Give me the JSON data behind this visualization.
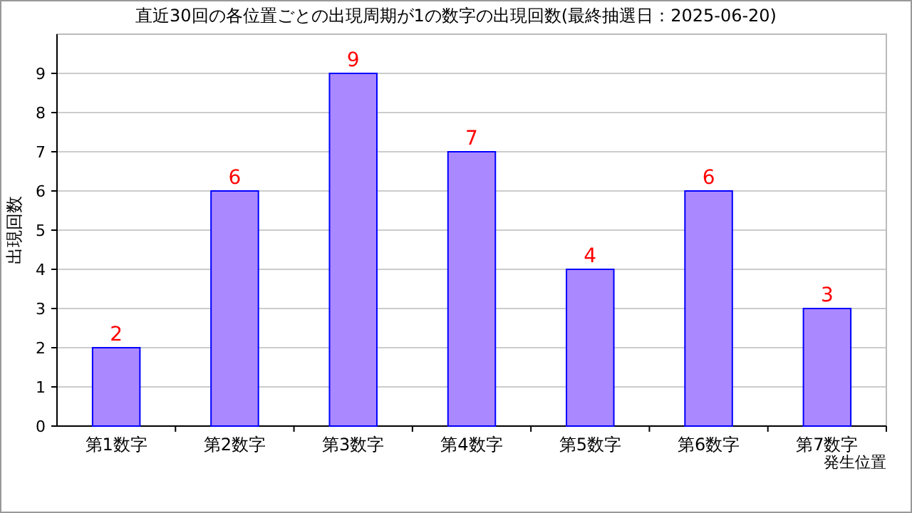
{
  "chart_data": {
    "type": "bar",
    "title": "直近30回の各位置ごとの出現周期が1の数字の出現回数(最終抽選日：2025-06-20)",
    "xlabel": "発生位置",
    "ylabel": "出現回数",
    "categories": [
      "第1数字",
      "第2数字",
      "第3数字",
      "第4数字",
      "第5数字",
      "第6数字",
      "第7数字"
    ],
    "values": [
      2,
      6,
      9,
      7,
      4,
      6,
      3
    ],
    "color": "#aa88ff",
    "ylim": [
      0,
      10
    ],
    "yticks": [
      0,
      1,
      2,
      3,
      4,
      5,
      6,
      7,
      8,
      9
    ],
    "grid": "y",
    "data_labels": true
  }
}
